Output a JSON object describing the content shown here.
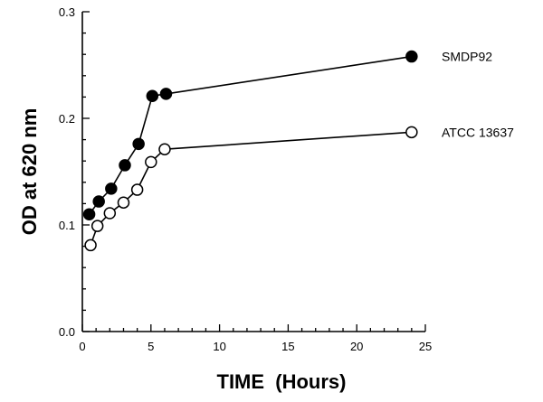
{
  "chart_data": {
    "type": "line",
    "xlabel": "TIME  (Hours)",
    "ylabel": "OD at 620 nm",
    "xlim": [
      0,
      25
    ],
    "ylim": [
      0.0,
      0.3
    ],
    "x_ticks": [
      0,
      5,
      10,
      15,
      20,
      25
    ],
    "x_tick_labels": [
      "0",
      "5",
      "10",
      "15",
      "20",
      "25"
    ],
    "y_ticks": [
      0.0,
      0.1,
      0.2,
      0.3
    ],
    "y_tick_labels": [
      "0.0",
      "0.1",
      "0.2",
      "0.3"
    ],
    "grid": false,
    "legend": "direct labels at right end of lines",
    "series": [
      {
        "name": "SMDP92",
        "marker": "filled-circle",
        "color": "#000000",
        "x": [
          0.5,
          1.2,
          2.1,
          3.1,
          4.1,
          5.1,
          6.1,
          24
        ],
        "y": [
          0.11,
          0.122,
          0.134,
          0.156,
          0.176,
          0.221,
          0.223,
          0.258
        ]
      },
      {
        "name": "ATCC 13637",
        "marker": "open-circle",
        "color": "#000000",
        "x": [
          0.6,
          1.1,
          2.0,
          3.0,
          4.0,
          5.0,
          6.0,
          24
        ],
        "y": [
          0.081,
          0.099,
          0.111,
          0.121,
          0.133,
          0.159,
          0.171,
          0.187
        ]
      }
    ]
  }
}
